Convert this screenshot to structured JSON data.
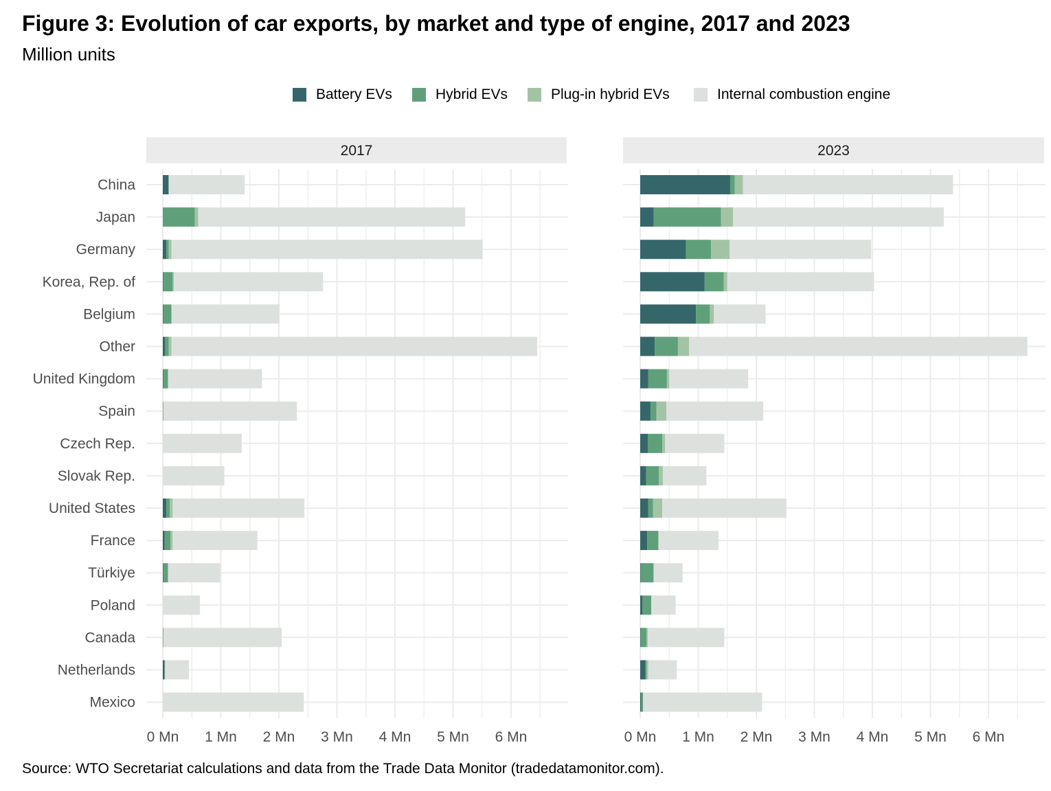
{
  "title": "Figure 3: Evolution of car exports, by market and type of engine, 2017 and 2023",
  "subtitle": "Million units",
  "source": "Source: WTO Secretariat calculations and data from the Trade Data Monitor (tradedatamonitor.com).",
  "legend": [
    {
      "label": "Battery EVs",
      "color": "#35676a"
    },
    {
      "label": "Hybrid EVs",
      "color": "#5fa07b"
    },
    {
      "label": "Plug-in hybrid EVs",
      "color": "#a3c4a4"
    },
    {
      "label": "Internal combustion engine",
      "color": "#dde1de"
    }
  ],
  "chart_data": {
    "type": "bar",
    "orientation": "horizontal",
    "stacked": true,
    "xlim": [
      0,
      7
    ],
    "x_ticks": [
      "0 Mn",
      "1 Mn",
      "2 Mn",
      "3 Mn",
      "4 Mn",
      "5 Mn",
      "6 Mn"
    ],
    "x_tick_values": [
      0,
      1,
      2,
      3,
      4,
      5,
      6
    ],
    "grid": true,
    "legend_position": "top",
    "categories": [
      "China",
      "Japan",
      "Germany",
      "Korea, Rep. of",
      "Belgium",
      "Other",
      "United Kingdom",
      "Spain",
      "Czech Rep.",
      "Slovak Rep.",
      "United States",
      "France",
      "Türkiye",
      "Poland",
      "Canada",
      "Netherlands",
      "Mexico"
    ],
    "panels": [
      {
        "label": "2017",
        "series": [
          {
            "name": "Battery EVs",
            "values": [
              0.1,
              0.0,
              0.06,
              0.01,
              0.01,
              0.04,
              0.01,
              0.0,
              0.0,
              0.0,
              0.06,
              0.03,
              0.01,
              0.0,
              0.0,
              0.03,
              0.0
            ]
          },
          {
            "name": "Hybrid EVs",
            "values": [
              0.0,
              0.55,
              0.04,
              0.16,
              0.14,
              0.06,
              0.08,
              0.01,
              0.0,
              0.0,
              0.06,
              0.1,
              0.08,
              0.0,
              0.01,
              0.0,
              0.0
            ]
          },
          {
            "name": "Plug-in hybrid EVs",
            "values": [
              0.0,
              0.06,
              0.05,
              0.02,
              0.0,
              0.05,
              0.0,
              0.0,
              0.0,
              0.0,
              0.05,
              0.04,
              0.0,
              0.0,
              0.0,
              0.01,
              0.0
            ]
          },
          {
            "name": "Internal combustion engine",
            "values": [
              1.31,
              4.6,
              5.36,
              2.57,
              1.86,
              6.3,
              1.62,
              2.3,
              1.36,
              1.06,
              2.27,
              1.46,
              0.9,
              0.64,
              2.04,
              0.41,
              2.43
            ]
          }
        ]
      },
      {
        "label": "2023",
        "series": [
          {
            "name": "Battery EVs",
            "values": [
              1.55,
              0.23,
              0.79,
              1.11,
              0.96,
              0.25,
              0.14,
              0.18,
              0.13,
              0.1,
              0.14,
              0.12,
              0.01,
              0.04,
              0.01,
              0.09,
              0.02
            ]
          },
          {
            "name": "Hybrid EVs",
            "values": [
              0.08,
              1.16,
              0.43,
              0.33,
              0.24,
              0.4,
              0.32,
              0.1,
              0.25,
              0.22,
              0.08,
              0.19,
              0.22,
              0.15,
              0.1,
              0.02,
              0.03
            ]
          },
          {
            "name": "Plug-in hybrid EVs",
            "values": [
              0.14,
              0.21,
              0.32,
              0.06,
              0.07,
              0.19,
              0.04,
              0.17,
              0.05,
              0.07,
              0.16,
              0.01,
              0.0,
              0.0,
              0.02,
              0.03,
              0.0
            ]
          },
          {
            "name": "Internal combustion engine",
            "values": [
              3.62,
              3.63,
              2.44,
              2.53,
              0.89,
              5.83,
              1.36,
              1.67,
              1.02,
              0.75,
              2.14,
              1.03,
              0.5,
              0.42,
              1.32,
              0.49,
              2.05
            ]
          }
        ]
      }
    ]
  }
}
